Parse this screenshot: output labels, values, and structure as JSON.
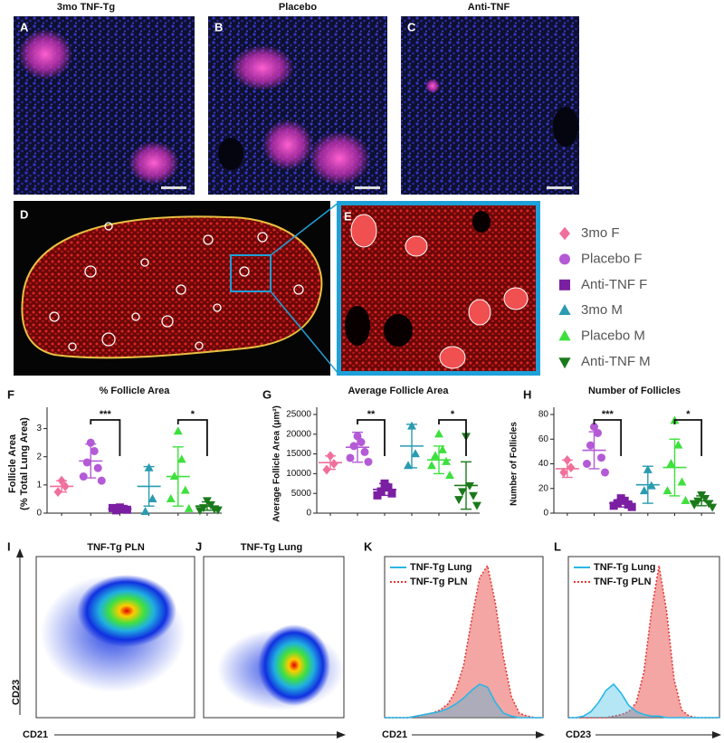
{
  "images": {
    "panels": [
      {
        "letter": "A",
        "title": "3mo TNF-Tg"
      },
      {
        "letter": "B",
        "title": "Placebo"
      },
      {
        "letter": "C",
        "title": "Anti-TNF"
      },
      {
        "letter": "D"
      },
      {
        "letter": "E"
      }
    ]
  },
  "legend": [
    {
      "name": "3mo F",
      "color": "#f0709a",
      "marker": "diamond"
    },
    {
      "name": "Placebo F",
      "color": "#b45ad6",
      "marker": "circle"
    },
    {
      "name": "Anti-TNF F",
      "color": "#7b1fa2",
      "marker": "square"
    },
    {
      "name": "3mo M",
      "color": "#2a9bb0",
      "marker": "triangle"
    },
    {
      "name": "Placebo M",
      "color": "#3ee03e",
      "marker": "triangle"
    },
    {
      "name": "Anti-TNF M",
      "color": "#1a7a1a",
      "marker": "triangle-down"
    }
  ],
  "flow": [
    {
      "letter": "I",
      "title": "TNF-Tg PLN",
      "x_label": "CD21",
      "y_label": "CD23"
    },
    {
      "letter": "J",
      "title": "TNF-Tg Lung"
    }
  ],
  "chart_data": [
    {
      "type": "dotplot",
      "letter": "F",
      "title": "% Follicle Area",
      "y_label": [
        "Follicle Area",
        "(% Total Lung Area)"
      ],
      "ylim": [
        0,
        3.5
      ],
      "yticks": [
        0,
        1,
        2,
        3
      ],
      "series": [
        {
          "color": "#f0709a",
          "marker": "diamond",
          "values": [
            1.15,
            0.95,
            0.75
          ],
          "mean": 0.95,
          "sd": 0.2
        },
        {
          "color": "#b45ad6",
          "marker": "circle",
          "values": [
            2.5,
            2.2,
            1.8,
            1.6,
            1.3,
            1.15
          ],
          "mean": 1.85,
          "sd": 0.6
        },
        {
          "color": "#7b1fa2",
          "marker": "square",
          "values": [
            0.2,
            0.15,
            0.1,
            0.12,
            0.18
          ],
          "mean": 0.15,
          "sd": 0.05
        },
        {
          "color": "#2a9bb0",
          "marker": "triangle",
          "values": [
            1.6,
            0.5,
            0.05
          ],
          "mean": 0.95,
          "sd": 0.7
        },
        {
          "color": "#3ee03e",
          "marker": "triangle",
          "values": [
            2.9,
            1.9,
            1.3,
            0.8,
            0.5,
            0.15
          ],
          "mean": 1.3,
          "sd": 1.05
        },
        {
          "color": "#1a7a1a",
          "marker": "triangle-down",
          "values": [
            0.45,
            0.3,
            0.2,
            0.15,
            0.1,
            0.12
          ],
          "mean": 0.25,
          "sd": 0.15
        }
      ],
      "brackets": [
        {
          "groups": [
            1,
            2
          ],
          "label": "***"
        },
        {
          "groups": [
            4,
            5
          ],
          "label": "*"
        }
      ]
    },
    {
      "type": "dotplot",
      "letter": "G",
      "title": "Average Follicle Area",
      "y_label": "Average Follicle Area (μm²)",
      "ylim": [
        0,
        25000
      ],
      "yticks": [
        0,
        5000,
        10000,
        15000,
        20000,
        25000
      ],
      "series": [
        {
          "color": "#f0709a",
          "marker": "diamond",
          "values": [
            14500,
            12500,
            11000
          ],
          "mean": 12800,
          "sd": 1700
        },
        {
          "color": "#b45ad6",
          "marker": "circle",
          "values": [
            19500,
            18000,
            17000,
            15500,
            14000,
            13000
          ],
          "mean": 16700,
          "sd": 3800
        },
        {
          "color": "#7b1fa2",
          "marker": "square",
          "values": [
            7500,
            6500,
            5500,
            5000,
            4500
          ],
          "mean": 6000,
          "sd": 1500
        },
        {
          "color": "#2a9bb0",
          "marker": "triangle",
          "values": [
            22000,
            15000,
            12000
          ],
          "mean": 17000,
          "sd": 5500
        },
        {
          "color": "#3ee03e",
          "marker": "triangle",
          "values": [
            20000,
            16000,
            14500,
            13000,
            12000,
            9500
          ],
          "mean": 13500,
          "sd": 3500
        },
        {
          "color": "#1a7a1a",
          "marker": "triangle-down",
          "values": [
            19500,
            7000,
            5500,
            4500,
            3500,
            2000
          ],
          "mean": 7000,
          "sd": 6000
        }
      ],
      "brackets": [
        {
          "groups": [
            1,
            2
          ],
          "label": "**"
        },
        {
          "groups": [
            4,
            5
          ],
          "label": "*"
        }
      ]
    },
    {
      "type": "dotplot",
      "letter": "H",
      "title": "Number of Follicles",
      "y_label": "Number of Follicles",
      "ylim": [
        0,
        80
      ],
      "yticks": [
        0,
        20,
        40,
        60,
        80
      ],
      "series": [
        {
          "color": "#f0709a",
          "marker": "diamond",
          "values": [
            43,
            37,
            33
          ],
          "mean": 36,
          "sd": 7
        },
        {
          "color": "#b45ad6",
          "marker": "circle",
          "values": [
            70,
            65,
            55,
            45,
            40,
            33
          ],
          "mean": 51,
          "sd": 15
        },
        {
          "color": "#7b1fa2",
          "marker": "square",
          "values": [
            12,
            10,
            8,
            7,
            6,
            5
          ],
          "mean": 8,
          "sd": 3
        },
        {
          "color": "#2a9bb0",
          "marker": "triangle",
          "values": [
            35,
            22,
            18
          ],
          "mean": 23,
          "sd": 15
        },
        {
          "color": "#3ee03e",
          "marker": "triangle",
          "values": [
            75,
            55,
            40,
            25,
            18,
            10
          ],
          "mean": 37,
          "sd": 23
        },
        {
          "color": "#1a7a1a",
          "marker": "triangle-down",
          "values": [
            15,
            12,
            10,
            8,
            7,
            5
          ],
          "mean": 10,
          "sd": 4
        }
      ],
      "brackets": [
        {
          "groups": [
            1,
            2
          ],
          "label": "***"
        },
        {
          "groups": [
            4,
            5
          ],
          "label": "*"
        }
      ]
    },
    {
      "type": "area",
      "letter": "K",
      "x_label": "CD21",
      "xlim": [
        0,
        100
      ],
      "ylim": [
        0,
        100
      ],
      "series": [
        {
          "name": "TNF-Tg Lung",
          "color": "#29b6e6",
          "style": "solid",
          "x": [
            0,
            5,
            10,
            15,
            20,
            25,
            30,
            35,
            40,
            45,
            50,
            55,
            60,
            65,
            70,
            75,
            80,
            85,
            90,
            95,
            100
          ],
          "values": [
            0,
            0,
            0,
            0,
            1,
            2,
            3,
            4,
            6,
            9,
            13,
            18,
            22,
            20,
            10,
            3,
            1,
            0,
            0,
            0,
            0
          ]
        },
        {
          "name": "TNF-Tg PLN",
          "color": "#e53935",
          "style": "dotted",
          "x": [
            0,
            5,
            10,
            15,
            20,
            25,
            30,
            35,
            40,
            45,
            50,
            55,
            60,
            65,
            70,
            75,
            80,
            85,
            90,
            95,
            100
          ],
          "values": [
            0,
            0,
            0,
            0,
            1,
            2,
            3,
            5,
            9,
            18,
            35,
            65,
            92,
            100,
            75,
            40,
            14,
            3,
            1,
            0,
            0
          ]
        }
      ]
    },
    {
      "type": "area",
      "letter": "L",
      "x_label": "CD23",
      "xlim": [
        0,
        100
      ],
      "ylim": [
        0,
        100
      ],
      "series": [
        {
          "name": "TNF-Tg Lung",
          "color": "#29b6e6",
          "style": "solid",
          "x": [
            0,
            5,
            10,
            15,
            20,
            25,
            30,
            35,
            40,
            45,
            50,
            55,
            60,
            65,
            70,
            75,
            80,
            85,
            90,
            95,
            100
          ],
          "values": [
            0,
            0,
            1,
            4,
            10,
            18,
            22,
            16,
            8,
            4,
            2,
            1,
            1,
            0,
            0,
            0,
            0,
            0,
            0,
            0,
            0
          ]
        },
        {
          "name": "TNF-Tg PLN",
          "color": "#e53935",
          "style": "dotted",
          "x": [
            0,
            5,
            10,
            15,
            20,
            25,
            30,
            35,
            40,
            45,
            50,
            55,
            60,
            65,
            70,
            75,
            80,
            85,
            90,
            95,
            100
          ],
          "values": [
            0,
            0,
            0,
            0,
            0,
            0,
            1,
            2,
            4,
            10,
            30,
            70,
            100,
            70,
            25,
            5,
            1,
            0,
            0,
            0,
            0
          ]
        }
      ]
    }
  ]
}
